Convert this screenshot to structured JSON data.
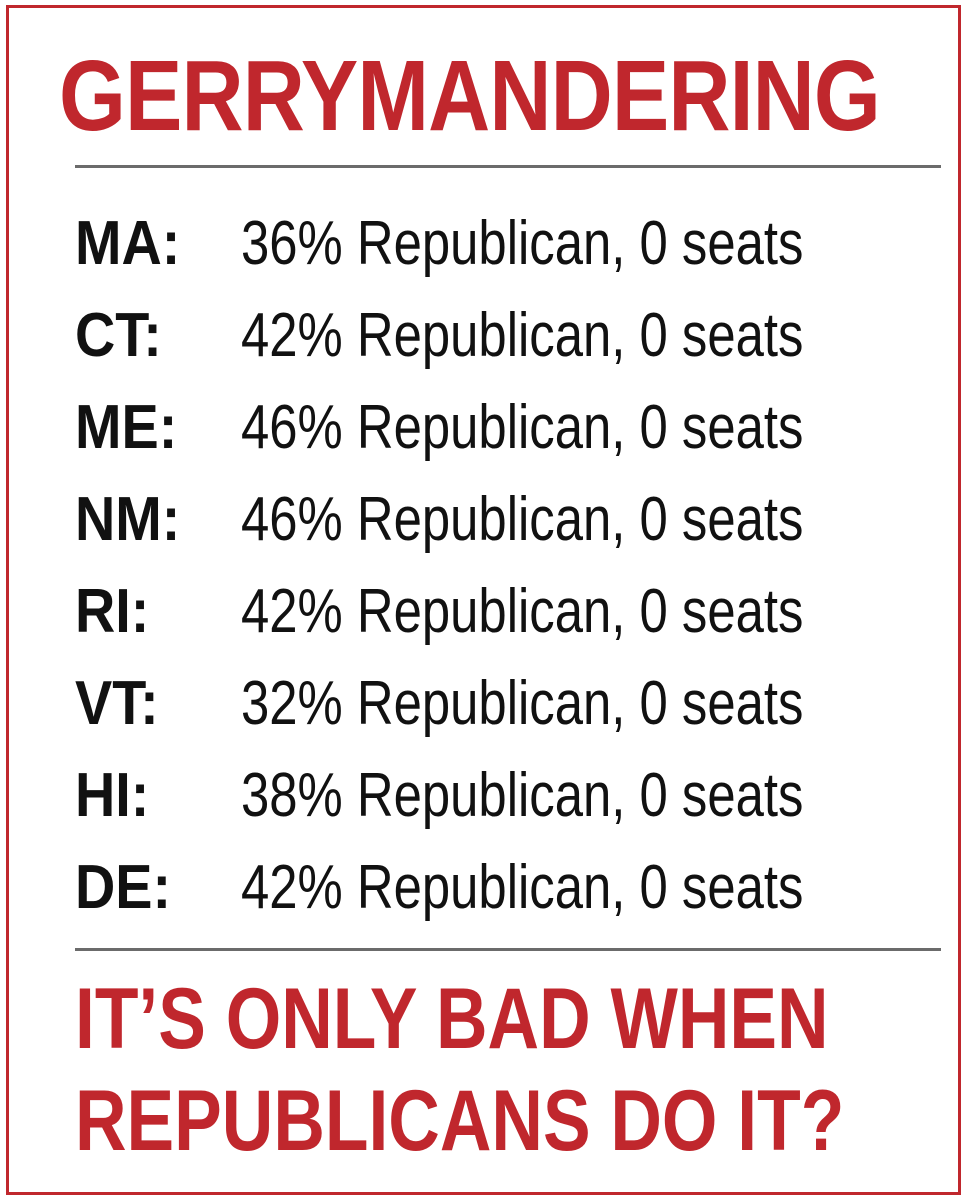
{
  "title": "GERRYMANDERING",
  "rows": [
    {
      "state": "MA:",
      "detail": "36% Republican, 0 seats"
    },
    {
      "state": "CT:",
      "detail": "42% Republican, 0 seats"
    },
    {
      "state": "ME:",
      "detail": "46% Republican, 0 seats"
    },
    {
      "state": "NM:",
      "detail": "46% Republican, 0 seats"
    },
    {
      "state": "RI:",
      "detail": "42% Republican, 0 seats"
    },
    {
      "state": "VT:",
      "detail": "32% Republican, 0 seats"
    },
    {
      "state": "HI:",
      "detail": "38% Republican, 0 seats"
    },
    {
      "state": "DE:",
      "detail": "42% Republican, 0 seats"
    }
  ],
  "slogan": {
    "line1": "IT’S ONLY BAD WHEN",
    "line2": "REPUBLICANS DO IT?"
  },
  "colors": {
    "accent": "#c0272d",
    "text": "#111111",
    "rule": "#6b6b6b"
  }
}
